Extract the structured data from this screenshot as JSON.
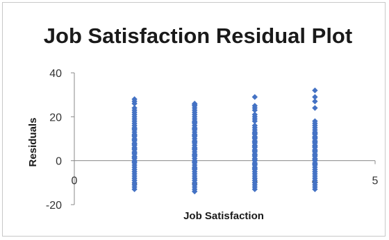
{
  "chart_data": {
    "type": "scatter",
    "title": "Job Satisfaction  Residual Plot",
    "xlabel": "Job Satisfaction",
    "ylabel": "Residuals",
    "xlim": [
      0,
      5
    ],
    "ylim": [
      -20,
      40
    ],
    "x_ticks": [
      "0",
      "1",
      "2",
      "3",
      "4",
      "5"
    ],
    "y_ticks": [
      "40",
      "20",
      "0",
      "-20"
    ],
    "grid": false,
    "legend": "none",
    "marker_color": "#4472C4",
    "series": [
      {
        "x": [
          1,
          1,
          1,
          1,
          1,
          1,
          1,
          1,
          1,
          1,
          1,
          1,
          1,
          1,
          1,
          1,
          1,
          1,
          1,
          1,
          1,
          1,
          1,
          1,
          1,
          1,
          1,
          1,
          1,
          1,
          1,
          1,
          1,
          1,
          1,
          1,
          1,
          1,
          1,
          1,
          1,
          1,
          1,
          1,
          1,
          1,
          1,
          1,
          1,
          2,
          2,
          2,
          2,
          2,
          2,
          2,
          2,
          2,
          2,
          2,
          2,
          2,
          2,
          2,
          2,
          2,
          2,
          2,
          2,
          2,
          2,
          2,
          2,
          2,
          2,
          2,
          2,
          2,
          2,
          2,
          2,
          2,
          2,
          2,
          2,
          2,
          2,
          2,
          2,
          2,
          2,
          2,
          2,
          2,
          2,
          2,
          2,
          2,
          2,
          3,
          3,
          3,
          3,
          3,
          3,
          3,
          3,
          3,
          3,
          3,
          3,
          3,
          3,
          3,
          3,
          3,
          3,
          3,
          3,
          3,
          3,
          3,
          3,
          3,
          3,
          3,
          3,
          3,
          3,
          3,
          3,
          3,
          3,
          3,
          3,
          3,
          3,
          3,
          3,
          3,
          3,
          3,
          3,
          3,
          3,
          3,
          4,
          4,
          4,
          4,
          4,
          4,
          4,
          4,
          4,
          4,
          4,
          4,
          4,
          4,
          4,
          4,
          4,
          4,
          4,
          4,
          4,
          4,
          4,
          4,
          4,
          4,
          4,
          4,
          4,
          4,
          4,
          4,
          4,
          4,
          4,
          4,
          4,
          4,
          4,
          4,
          4,
          4,
          4,
          4
        ],
        "y": [
          28,
          26,
          23,
          21,
          19,
          17,
          15,
          14,
          13,
          12,
          11,
          10,
          9,
          8,
          7,
          6,
          5,
          4,
          3,
          2,
          1,
          0,
          -1,
          -2,
          -3,
          -4,
          -5,
          -6,
          -7,
          -8,
          -9,
          -10,
          -11,
          -12,
          -13,
          27,
          24,
          22,
          20,
          18,
          16,
          14.5,
          11.5,
          9.5,
          7.5,
          5.5,
          3.5,
          1.5,
          -0.5,
          26,
          25,
          24,
          22,
          21,
          19,
          18,
          17,
          16,
          15,
          14,
          13,
          12,
          11,
          10,
          9,
          8,
          7,
          6,
          5,
          4,
          3,
          2,
          1,
          0,
          -1,
          -2,
          -3,
          -4,
          -5,
          -6,
          -7,
          -8,
          -9,
          -10,
          -11,
          -12,
          -13,
          -14,
          25.5,
          23,
          20,
          17.5,
          14.5,
          11.5,
          8.5,
          5.5,
          2.5,
          -0.5,
          -3.5,
          29,
          25,
          23,
          20,
          18,
          15,
          14,
          13,
          12,
          11,
          10,
          9,
          8,
          7,
          6,
          5,
          4,
          3,
          2,
          1,
          0,
          -1,
          -2,
          -3,
          -4,
          -5,
          -6,
          -7,
          -8,
          -9,
          -10,
          -11,
          -12,
          -13,
          24,
          21,
          19,
          16,
          12.5,
          10.5,
          8.5,
          6.5,
          4.5,
          2.5,
          0.5,
          -1.5,
          -3.5,
          32,
          29,
          27,
          24,
          18,
          17,
          15,
          14,
          13,
          12,
          11,
          10,
          9,
          8,
          7,
          6,
          5,
          4,
          3,
          2,
          1,
          0,
          -1,
          -2,
          -3,
          -4,
          -5,
          -6,
          -7,
          -8,
          -9,
          -10,
          -11,
          -12,
          -13,
          16,
          12.5,
          10.5,
          8.5,
          6.5,
          4.5,
          2.5,
          0.5,
          -1.5
        ]
      }
    ]
  }
}
